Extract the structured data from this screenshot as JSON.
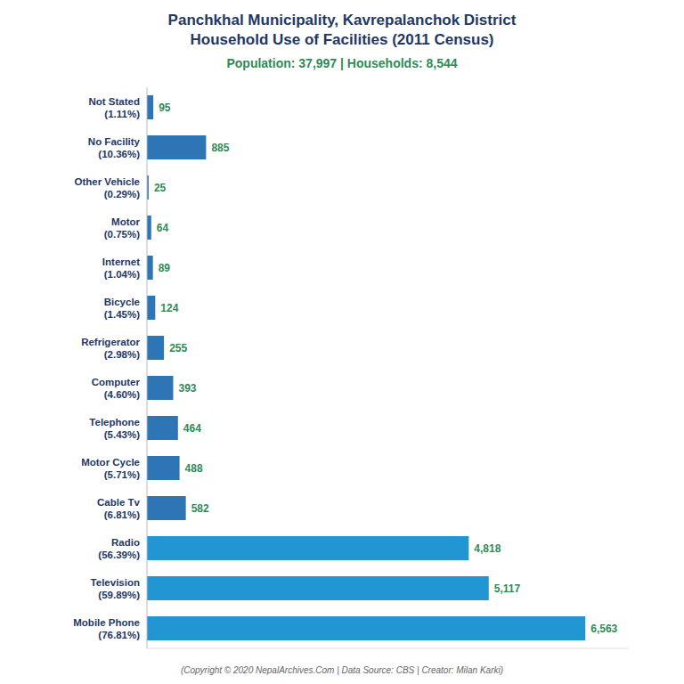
{
  "chart_data": {
    "type": "bar",
    "orientation": "horizontal",
    "title": "Panchkhal Municipality, Kavrepalanchok District\nHousehold Use of Facilities (2011 Census)",
    "subtitle": "Population: 37,997 | Households: 8,544",
    "annotations": [
      "(Copyright © 2020 NepalArchives.Com | Data Source: CBS | Creator: Milan Karki)"
    ],
    "categories": [
      "Mobile Phone\n(76.81%)",
      "Television\n(59.89%)",
      "Radio\n(56.39%)",
      "Cable Tv\n(6.81%)",
      "Motor Cycle\n(5.71%)",
      "Telephone\n(5.43%)",
      "Computer\n(4.60%)",
      "Refrigerator\n(2.98%)",
      "Bicycle\n(1.45%)",
      "Internet\n(1.04%)",
      "Motor\n(0.75%)",
      "Other Vehicle\n(0.29%)",
      "No Facility\n(10.36%)",
      "Not Stated\n(1.11%)"
    ],
    "values": [
      6563,
      5117,
      4818,
      582,
      488,
      464,
      393,
      255,
      124,
      89,
      64,
      25,
      885,
      95
    ],
    "value_labels": [
      "6,563",
      "5,117",
      "4,818",
      "582",
      "488",
      "464",
      "393",
      "255",
      "124",
      "89",
      "64",
      "25",
      "885",
      "95"
    ],
    "colors": [
      "#2196D3",
      "#2196D3",
      "#2196D3",
      "#2E75B6",
      "#2E75B6",
      "#2E75B6",
      "#2E75B6",
      "#2E75B6",
      "#2E75B6",
      "#2E75B6",
      "#2E75B6",
      "#2E75B6",
      "#2E75B6",
      "#2E75B6"
    ],
    "xlim": [
      0,
      7200
    ],
    "data_labels": true,
    "tick_labels": "y",
    "grid": false
  }
}
